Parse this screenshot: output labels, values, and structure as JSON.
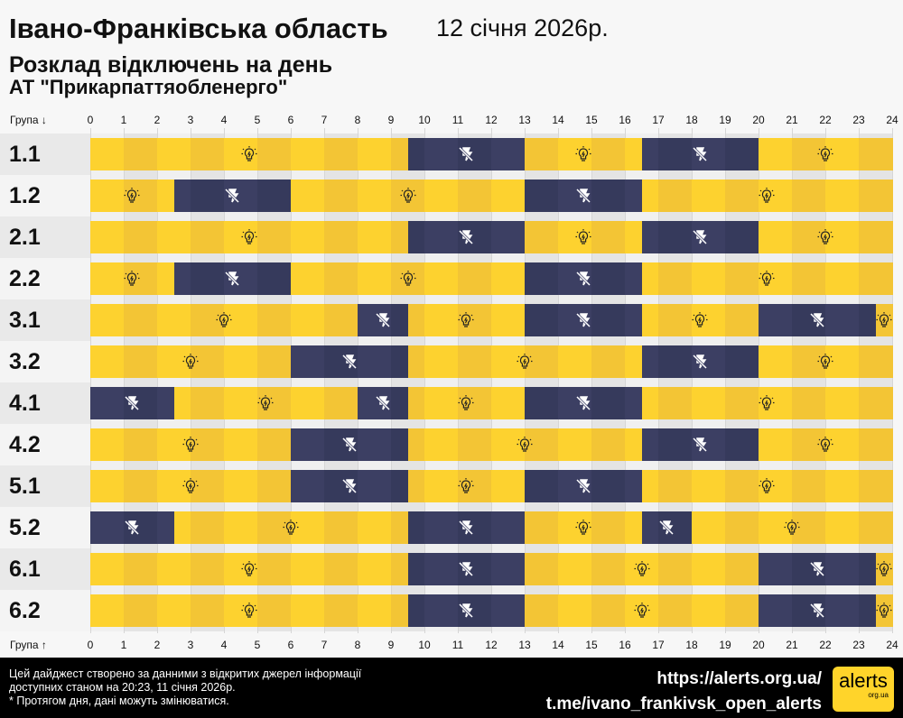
{
  "header": {
    "region": "Івано-Франківська область",
    "date": "12 січня 2026р.",
    "subtitle": "Розклад відключень на день",
    "company": "АТ \"Прикарпаттяобленерго\""
  },
  "chart_data": {
    "type": "timeline",
    "x_axis_label_top": "Група ↓",
    "x_axis_label_bottom": "Група ↑",
    "xlim": [
      0,
      24
    ],
    "ticks": [
      "0",
      "1",
      "2",
      "3",
      "4",
      "5",
      "6",
      "7",
      "8",
      "9",
      "10",
      "11",
      "12",
      "13",
      "14",
      "15",
      "16",
      "17",
      "18",
      "19",
      "20",
      "21",
      "22",
      "23",
      "24"
    ],
    "colors": {
      "on": "#fdd22f",
      "on_alt": "#f3c535",
      "off": "#3c3f63",
      "off_alt": "#363a5c"
    },
    "icons": {
      "on": "lightbulb-icon",
      "off": "power-off-icon"
    },
    "groups": [
      {
        "name": "1.1",
        "outages": [
          [
            9.5,
            13
          ],
          [
            16.5,
            20
          ]
        ]
      },
      {
        "name": "1.2",
        "outages": [
          [
            2.5,
            6
          ],
          [
            13,
            16.5
          ]
        ]
      },
      {
        "name": "2.1",
        "outages": [
          [
            9.5,
            13
          ],
          [
            16.5,
            20
          ]
        ]
      },
      {
        "name": "2.2",
        "outages": [
          [
            2.5,
            6
          ],
          [
            13,
            16.5
          ]
        ]
      },
      {
        "name": "3.1",
        "outages": [
          [
            8,
            9.5
          ],
          [
            13,
            16.5
          ],
          [
            20,
            23.5
          ]
        ]
      },
      {
        "name": "3.2",
        "outages": [
          [
            6,
            9.5
          ],
          [
            16.5,
            20
          ]
        ]
      },
      {
        "name": "4.1",
        "outages": [
          [
            0,
            2.5
          ],
          [
            8,
            9.5
          ],
          [
            13,
            16.5
          ]
        ]
      },
      {
        "name": "4.2",
        "outages": [
          [
            6,
            9.5
          ],
          [
            16.5,
            20
          ]
        ]
      },
      {
        "name": "5.1",
        "outages": [
          [
            6,
            9.5
          ],
          [
            13,
            16.5
          ]
        ]
      },
      {
        "name": "5.2",
        "outages": [
          [
            0,
            2.5
          ],
          [
            9.5,
            13
          ],
          [
            16.5,
            18
          ]
        ]
      },
      {
        "name": "6.1",
        "outages": [
          [
            9.5,
            13
          ],
          [
            20,
            23.5
          ]
        ]
      },
      {
        "name": "6.2",
        "outages": [
          [
            9.5,
            13
          ],
          [
            20,
            23.5
          ]
        ]
      }
    ]
  },
  "footer": {
    "note1": "Цей дайджест створено за данними з відкритих джерел інформації",
    "note2": "доступних станом на 20:23, 11 січня 2026р.",
    "note3": "* Протягом дня, дані можуть змінюватися.",
    "link1": "https://alerts.org.ua/",
    "link2": "t.me/ivano_frankivsk_open_alerts",
    "logo": "alerts",
    "logo_sub": "org.ua"
  }
}
